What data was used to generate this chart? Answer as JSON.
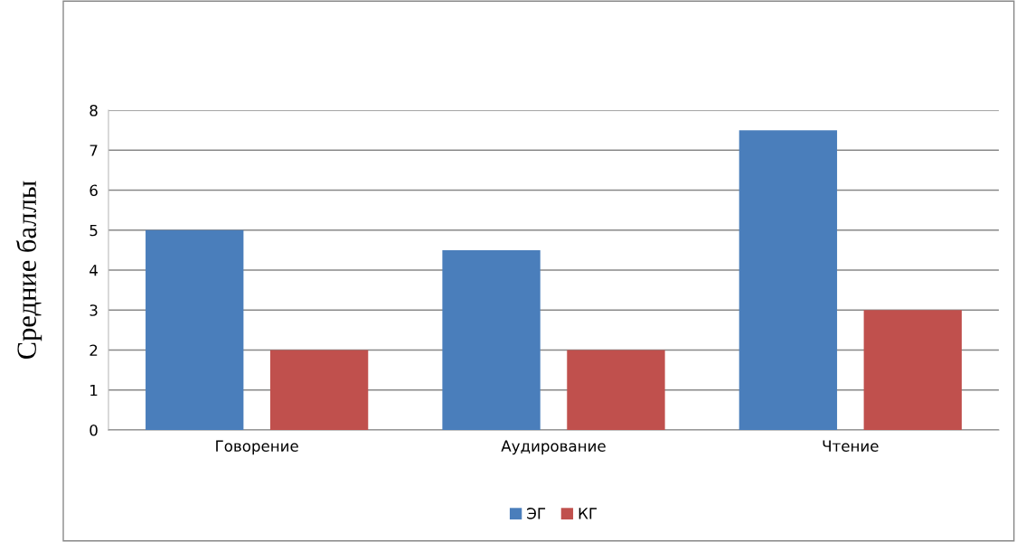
{
  "chart_data": {
    "type": "bar",
    "ylabel": "Средние баллы",
    "categories": [
      "Говорение",
      "Аудирование",
      "Чтение"
    ],
    "series": [
      {
        "name": "ЭГ",
        "color": "#4a7ebb",
        "values": [
          5,
          4.5,
          7.5
        ]
      },
      {
        "name": "КГ",
        "color": "#c0504d",
        "values": [
          2,
          2,
          3
        ]
      }
    ],
    "ylim": [
      0,
      8
    ],
    "yticks": [
      0,
      1,
      2,
      3,
      4,
      5,
      6,
      7,
      8
    ],
    "grid": "y",
    "legend": "bottom"
  }
}
